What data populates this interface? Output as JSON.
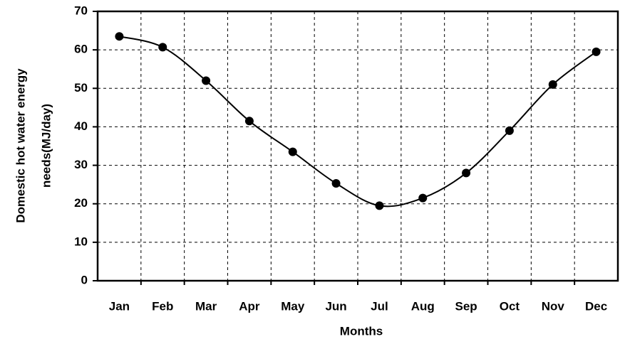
{
  "chart_data": {
    "type": "line",
    "categories": [
      "Jan",
      "Feb",
      "Mar",
      "Apr",
      "May",
      "Jun",
      "Jul",
      "Aug",
      "Sep",
      "Oct",
      "Nov",
      "Dec"
    ],
    "series": [
      {
        "color": "#000000",
        "values": [
          63.5,
          60.7,
          52,
          41.5,
          33.5,
          25.3,
          19.5,
          21.5,
          28,
          39,
          51,
          59.5
        ]
      }
    ],
    "ylim": [
      0,
      70
    ],
    "yticks": [
      0,
      10,
      20,
      30,
      40,
      50,
      60,
      70
    ],
    "grid": true,
    "xlabel": "Months",
    "ylabel": [
      "Domestic hot water energy",
      "needs(MJ/day)"
    ]
  }
}
